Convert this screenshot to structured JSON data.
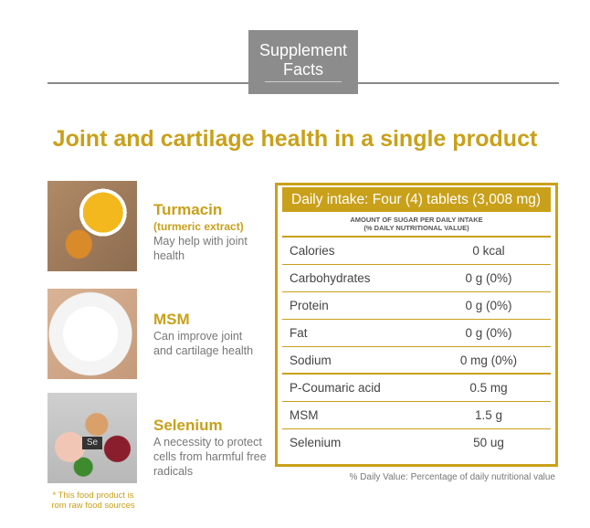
{
  "header": {
    "badge_line1": "Supplement",
    "badge_line2": "Facts",
    "title": "Joint and cartilage health in a single product"
  },
  "ingredients": [
    {
      "name": "Turmacin",
      "sub": "(turmeric extract)",
      "desc": "May help with joint health"
    },
    {
      "name": "MSM",
      "sub": "",
      "desc": "Can improve joint and cartilage health"
    },
    {
      "name": "Selenium",
      "sub": "",
      "desc": "A necessity to protect cells from harmful free radicals",
      "image_label": "Se"
    }
  ],
  "note": "* This food product is rom raw food sources",
  "table": {
    "title": "Daily intake: Four (4) tablets (3,008 mg)",
    "subheader_line1": "AMOUNT OF SUGAR PER DAILY INTAKE",
    "subheader_line2": "(% DAILY NUTRITIONAL VALUE)",
    "rows": [
      {
        "k": "Calories",
        "v": "0 kcal"
      },
      {
        "k": "Carbohydrates",
        "v": "0 g (0%)"
      },
      {
        "k": "Protein",
        "v": "0 g (0%)"
      },
      {
        "k": "Fat",
        "v": "0 g (0%)"
      },
      {
        "k": "Sodium",
        "v": "0 mg (0%)"
      },
      {
        "k": "P-Coumaric acid",
        "v": "0.5 mg"
      },
      {
        "k": "MSM",
        "v": "1.5 g"
      },
      {
        "k": "Selenium",
        "v": "50 ug"
      }
    ],
    "footnote": "% Daily Value: Percentage of daily nutritional value"
  },
  "colors": {
    "accent": "#c9a01a",
    "badge": "#8c8c8c"
  }
}
